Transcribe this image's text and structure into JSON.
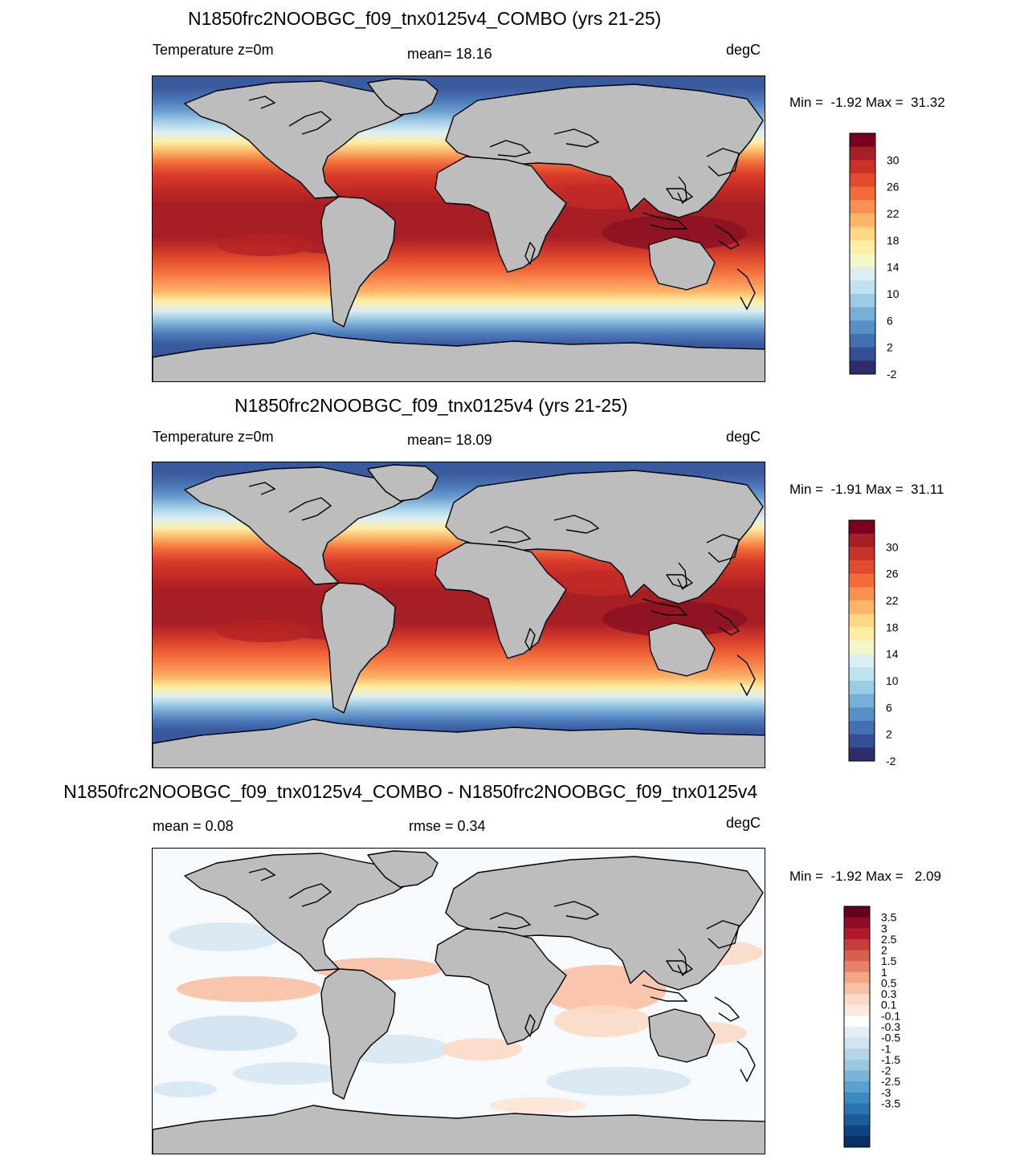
{
  "panels": [
    {
      "title": "N1850frc2NOOBGC_f09_tnx0125v4_COMBO (yrs 21-25)",
      "left_label": "Temperature z=0m",
      "center_label": "mean=  18.16",
      "units": "degC",
      "minmax": "Min =  -1.92 Max =  31.32",
      "colorbar": {
        "colors": [
          "#7a0020",
          "#a51f25",
          "#c83228",
          "#e04c2c",
          "#f26b3a",
          "#f99053",
          "#fdb567",
          "#fed787",
          "#fdeea4",
          "#f5f7c9",
          "#ddeef2",
          "#bee2ee",
          "#9ccbe4",
          "#78afd6",
          "#5790c5",
          "#4270b2",
          "#354f96",
          "#2e2c6a"
        ],
        "labels": [
          "30",
          "26",
          "22",
          "18",
          "14",
          "10",
          "6",
          "2",
          "-2"
        ]
      }
    },
    {
      "title": "N1850frc2NOOBGC_f09_tnx0125v4 (yrs 21-25)",
      "left_label": "Temperature z=0m",
      "center_label": "mean=  18.09",
      "units": "degC",
      "minmax": "Min =  -1.91 Max =  31.11",
      "colorbar": {
        "colors": [
          "#7a0020",
          "#a51f25",
          "#c83228",
          "#e04c2c",
          "#f26b3a",
          "#f99053",
          "#fdb567",
          "#fed787",
          "#fdeea4",
          "#f5f7c9",
          "#ddeef2",
          "#bee2ee",
          "#9ccbe4",
          "#78afd6",
          "#5790c5",
          "#4270b2",
          "#354f96",
          "#2e2c6a"
        ],
        "labels": [
          "30",
          "26",
          "22",
          "18",
          "14",
          "10",
          "6",
          "2",
          "-2"
        ]
      }
    },
    {
      "title": "N1850frc2NOOBGC_f09_tnx0125v4_COMBO - N1850frc2NOOBGC_f09_tnx0125v4",
      "left_label": "mean =   0.08",
      "center_label": "rmse =   0.34",
      "units": "degC",
      "minmax": "Min =  -1.92 Max =   2.09",
      "colorbar": {
        "colors": [
          "#67001f",
          "#8e0c25",
          "#b2182b",
          "#c63c3c",
          "#d6604d",
          "#e58368",
          "#f4a582",
          "#f8c0a4",
          "#fbd9c6",
          "#fde9dd",
          "#ffffff",
          "#e3eef6",
          "#d1e5f0",
          "#b6d5e8",
          "#9ac8e0",
          "#7ab4d6",
          "#5aa1cd",
          "#3d8ac0",
          "#2b75b3",
          "#1c5c9d",
          "#0e447f",
          "#053061"
        ],
        "labels": [
          "3.5",
          "3",
          "2.5",
          "2",
          "1.5",
          "1",
          "0.5",
          "0.3",
          "0.1",
          "-0.1",
          "-0.3",
          "-0.5",
          "-1",
          "-1.5",
          "-2",
          "-2.5",
          "-3",
          "-3.5"
        ]
      }
    }
  ],
  "colors": {
    "land": "#bdbdbd",
    "coast": "#000000"
  }
}
